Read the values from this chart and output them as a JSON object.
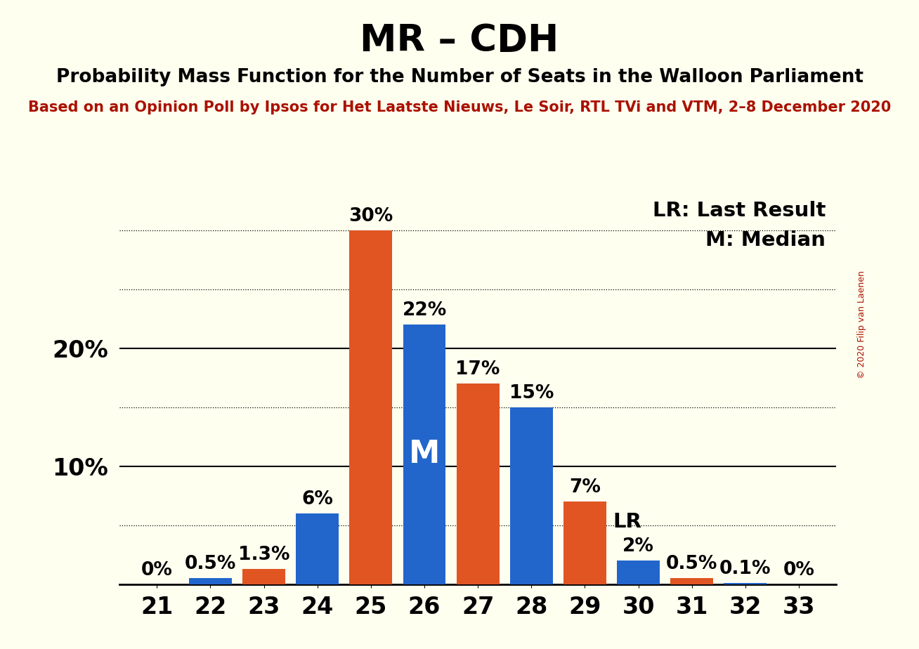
{
  "title": "MR – CDH",
  "subtitle": "Probability Mass Function for the Number of Seats in the Walloon Parliament",
  "source": "Based on an Opinion Poll by Ipsos for Het Laatste Nieuws, Le Soir, RTL TVi and VTM, 2–8 December 2020",
  "copyright": "© 2020 Filip van Laenen",
  "seats": [
    21,
    22,
    23,
    24,
    25,
    26,
    27,
    28,
    29,
    30,
    31,
    32,
    33
  ],
  "values": [
    0.0,
    0.5,
    1.3,
    6.0,
    30.0,
    22.0,
    17.0,
    15.0,
    7.0,
    2.0,
    0.5,
    0.1,
    0.0
  ],
  "bar_colors": [
    "#2266cc",
    "#2266cc",
    "#e05522",
    "#2266cc",
    "#e05522",
    "#2266cc",
    "#e05522",
    "#2266cc",
    "#e05522",
    "#2266cc",
    "#e05522",
    "#2266cc",
    "#2266cc"
  ],
  "labels": [
    "0%",
    "0.5%",
    "1.3%",
    "6%",
    "30%",
    "22%",
    "17%",
    "15%",
    "7%",
    "2%",
    "0.5%",
    "0.1%",
    "0%"
  ],
  "median_seat": 26,
  "lr_seat": 29,
  "background_color": "#fffff0",
  "border_color": "#000000",
  "bar_color_blue": "#2266cc",
  "bar_color_orange": "#e05522",
  "title_fontsize": 38,
  "subtitle_fontsize": 19,
  "source_fontsize": 15,
  "axis_fontsize": 24,
  "label_fontsize": 19,
  "legend_fontsize": 21,
  "median_label_fontsize": 32,
  "lr_label_fontsize": 21
}
